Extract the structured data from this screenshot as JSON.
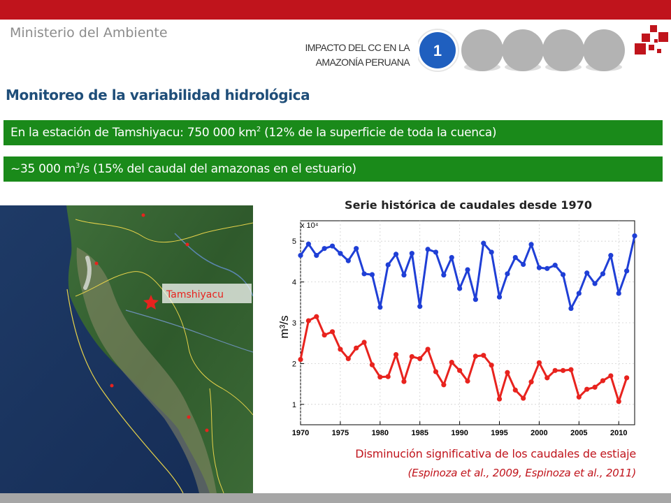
{
  "header": {
    "ministry": "Ministerio del Ambiente",
    "impact_line1": "IMPACTO DEL CC EN LA",
    "impact_line2": "AMAZONÍA PERUANA",
    "steps": [
      "1",
      "",
      "",
      "",
      ""
    ],
    "active_step": 0,
    "colors": {
      "brand_red": "#c0141c",
      "active": "#1f5fbf",
      "inactive": "#b3b3b3"
    }
  },
  "title": "Monitoreo de la variabilidad hidrológica",
  "info_bars": [
    {
      "before": "En la estación de Tamshiyacu: 750 000 km",
      "sup": "2",
      "after": " (12% de la superficie de toda la cuenca)"
    },
    {
      "before": "~35 000 m",
      "sup": "3",
      "after": "/s (15% del caudal del amazonas en el estuario)"
    }
  ],
  "map": {
    "station_label": "Tamshiyacu",
    "marker_icon": "star-icon"
  },
  "chart_data": {
    "type": "line",
    "title": "Serie histórica de caudales desde 1970",
    "ylabel": "m³/s",
    "y_multiplier": "x 10⁴",
    "xlim": [
      1970,
      2012
    ],
    "ylim": [
      0.5,
      5.5
    ],
    "xticks": [
      1970,
      1975,
      1980,
      1985,
      1990,
      1995,
      2000,
      2005,
      2010
    ],
    "yticks": [
      1,
      2,
      3,
      4,
      5
    ],
    "x": [
      1970,
      1971,
      1972,
      1973,
      1974,
      1975,
      1976,
      1977,
      1978,
      1979,
      1980,
      1981,
      1982,
      1983,
      1984,
      1985,
      1986,
      1987,
      1988,
      1989,
      1990,
      1991,
      1992,
      1993,
      1994,
      1995,
      1996,
      1997,
      1998,
      1999,
      2000,
      2001,
      2002,
      2003,
      2004,
      2005,
      2006,
      2007,
      2008,
      2009,
      2010,
      2011,
      2012
    ],
    "series": [
      {
        "color": "#1f3fd6",
        "values": [
          4.65,
          4.93,
          4.65,
          4.82,
          4.88,
          4.7,
          4.52,
          4.82,
          4.2,
          4.18,
          3.38,
          4.42,
          4.68,
          4.17,
          4.7,
          3.4,
          4.8,
          4.73,
          4.17,
          4.6,
          3.84,
          4.3,
          3.57,
          4.95,
          4.73,
          3.63,
          4.2,
          4.6,
          4.43,
          4.92,
          4.35,
          4.33,
          4.41,
          4.18,
          3.35,
          3.72,
          4.22,
          3.96,
          4.2,
          4.65,
          3.72,
          4.27,
          5.13
        ]
      },
      {
        "color": "#e8231e",
        "values": [
          2.1,
          3.05,
          3.15,
          2.7,
          2.78,
          2.35,
          2.12,
          2.38,
          2.52,
          1.97,
          1.67,
          1.68,
          2.22,
          1.56,
          2.17,
          2.12,
          2.35,
          1.8,
          1.48,
          2.03,
          1.83,
          1.57,
          2.18,
          2.2,
          1.96,
          1.13,
          1.78,
          1.35,
          1.15,
          1.55,
          2.02,
          1.65,
          1.83,
          1.83,
          1.85,
          1.18,
          1.37,
          1.42,
          1.58,
          1.7,
          1.07,
          1.65,
          null
        ]
      }
    ]
  },
  "finding": "Disminución significativa de los caudales de estiaje",
  "citation": "(Espinoza et al., 2009, Espinoza et al., 2011)"
}
